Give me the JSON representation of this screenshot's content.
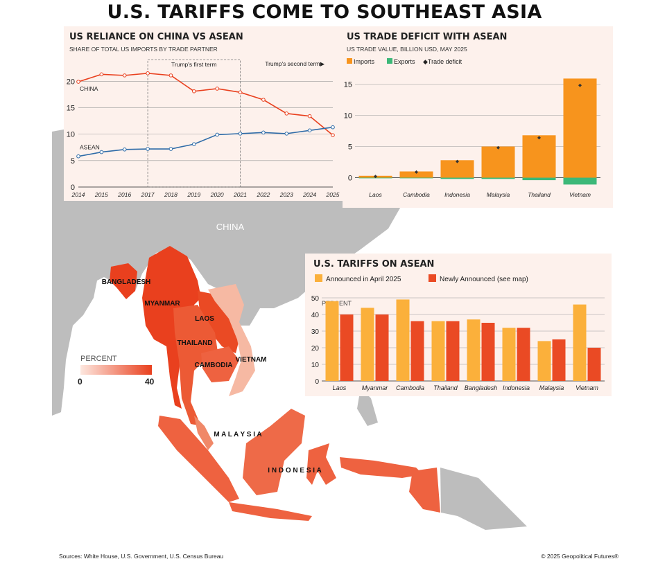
{
  "title": "U.S. TARIFFS COME TO SOUTHEAST ASIA",
  "map": {
    "labels": [
      "CHINA",
      "BANGLADESH",
      "MYANMAR",
      "LAOS",
      "THAILAND",
      "CAMBODIA",
      "VIETNAM",
      "M A L A Y S I A",
      "I N D O N E S I A"
    ],
    "legend": {
      "label": "PERCENT",
      "min": "0",
      "max": "40"
    },
    "colors": {
      "land": "#bdbdbd",
      "low": "#f6b9a3",
      "high": "#e9401e"
    }
  },
  "line_panel": {
    "title": "US RELIANCE ON CHINA VS ASEAN",
    "subtitle": "SHARE OF TOTAL US IMPORTS BY TRADE PARTNER",
    "annotations": [
      "Trump's first term",
      "Trump's second term▶"
    ]
  },
  "deficit_panel": {
    "title": "US TRADE DEFICIT WITH ASEAN",
    "subtitle": "US TRADE VALUE, BILLION USD, MAY 2025",
    "legend": [
      "Imports",
      "Exports",
      "◆Trade deficit"
    ]
  },
  "tariff_panel": {
    "title": "U.S. TARIFFS ON ASEAN",
    "legend": [
      "Announced in April 2025",
      "Newly Announced (see map)"
    ],
    "unit_label": "PERCENT"
  },
  "footer": {
    "sources": "Sources: White House, U.S. Government, U.S. Census Bureau",
    "copyright": "© 2025 Geopolitical Futures®"
  },
  "chart_data": [
    {
      "type": "line",
      "x": [
        2014,
        2015,
        2016,
        2017,
        2018,
        2019,
        2020,
        2021,
        2022,
        2023,
        2024,
        2025
      ],
      "series": [
        {
          "name": "CHINA",
          "color": "#e9401e",
          "values": [
            19.9,
            21.3,
            21.1,
            21.5,
            21.1,
            18.1,
            18.6,
            17.9,
            16.5,
            13.9,
            13.4,
            9.8
          ]
        },
        {
          "name": "ASEAN",
          "color": "#2f6ca8",
          "values": [
            5.8,
            6.6,
            7.1,
            7.2,
            7.2,
            8.1,
            9.9,
            10.1,
            10.3,
            10.1,
            10.7,
            11.3
          ]
        }
      ],
      "ylim": [
        0,
        22
      ],
      "yticks": [
        0,
        5,
        10,
        15,
        20
      ],
      "grid": true
    },
    {
      "type": "bar",
      "categories": [
        "Laos",
        "Cambodia",
        "Indonesia",
        "Malaysia",
        "Thailand",
        "Vietnam"
      ],
      "series": [
        {
          "name": "Imports",
          "color": "#f7941d",
          "values": [
            0.3,
            1.0,
            2.8,
            5.0,
            6.8,
            15.9
          ]
        },
        {
          "name": "Exports",
          "color": "#3cb878",
          "values": [
            -0.1,
            -0.1,
            -0.2,
            -0.2,
            -0.4,
            -1.1
          ]
        },
        {
          "name": "Trade deficit",
          "color": "#333333",
          "values": [
            0.2,
            0.9,
            2.6,
            4.8,
            6.4,
            14.8
          ]
        }
      ],
      "ylim": [
        -1.5,
        16.5
      ],
      "yticks": [
        0,
        5,
        10,
        15
      ],
      "grid": true
    },
    {
      "type": "bar",
      "categories": [
        "Laos",
        "Myanmar",
        "Cambodia",
        "Thailand",
        "Bangladesh",
        "Indonesia",
        "Malaysia",
        "Vietnam"
      ],
      "series": [
        {
          "name": "Announced in April 2025",
          "color": "#fbb03b",
          "values": [
            48,
            44,
            49,
            36,
            37,
            32,
            24,
            46
          ]
        },
        {
          "name": "Newly Announced (see map)",
          "color": "#ea4a24",
          "values": [
            40,
            40,
            36,
            36,
            35,
            32,
            25,
            20
          ]
        }
      ],
      "ylim": [
        0,
        50
      ],
      "yticks": [
        0,
        10,
        20,
        30,
        40,
        50
      ],
      "grid": true
    }
  ]
}
